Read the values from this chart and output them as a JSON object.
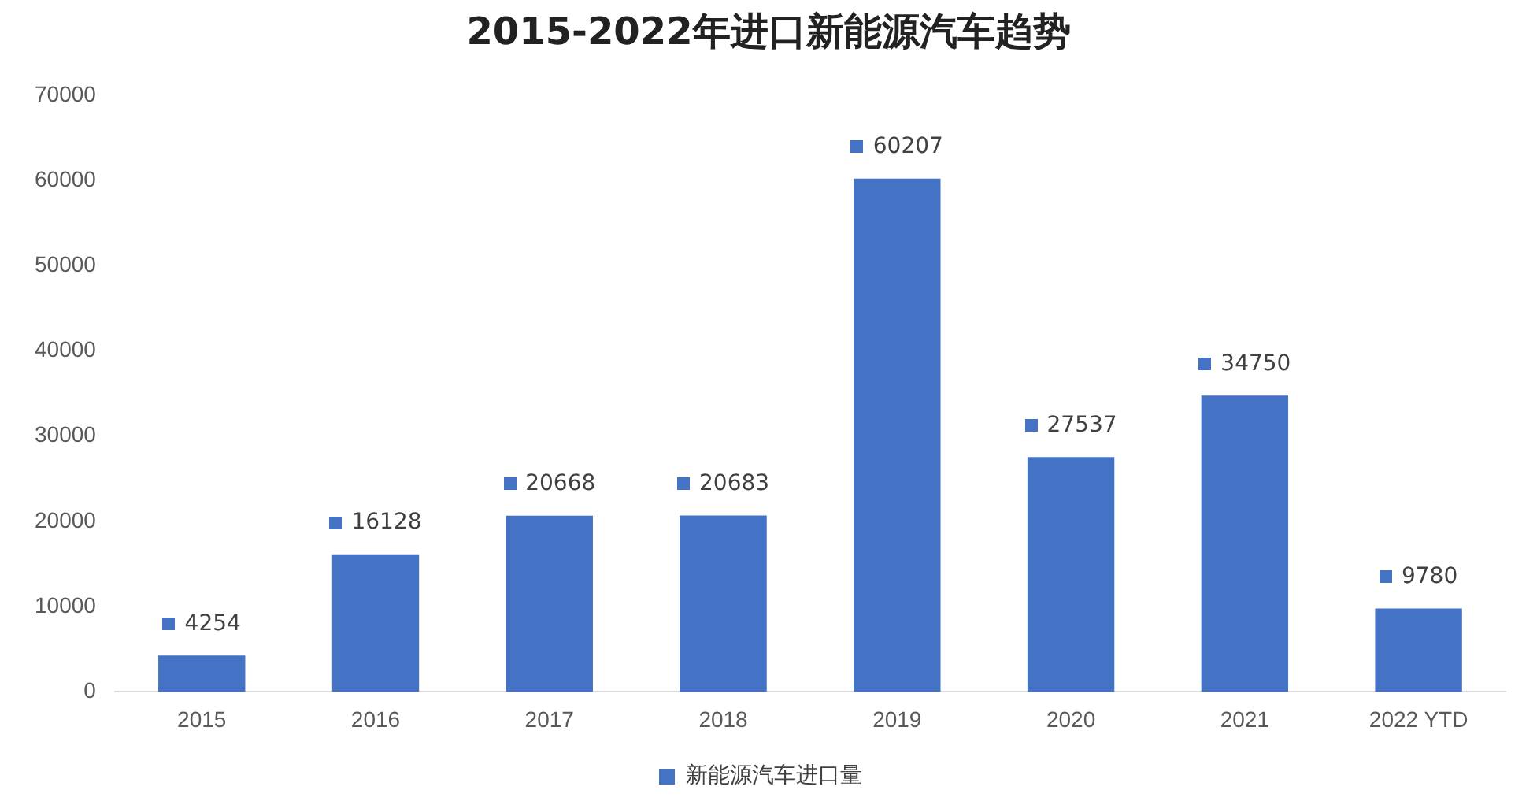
{
  "chart_data": {
    "type": "bar",
    "title": "2015-2022年进口新能源汽车趋势",
    "categories": [
      "2015",
      "2016",
      "2017",
      "2018",
      "2019",
      "2020",
      "2021",
      "2022 YTD"
    ],
    "series": [
      {
        "name": "新能源汽车进口量",
        "color": "#4472c4",
        "values": [
          4254,
          16128,
          20668,
          20683,
          60207,
          27537,
          34750,
          9780
        ]
      }
    ],
    "ylim": [
      0,
      70000
    ],
    "yticks": [
      0,
      10000,
      20000,
      30000,
      40000,
      50000,
      60000,
      70000
    ],
    "grid": false,
    "legend": "bottom",
    "data_labels": true
  }
}
